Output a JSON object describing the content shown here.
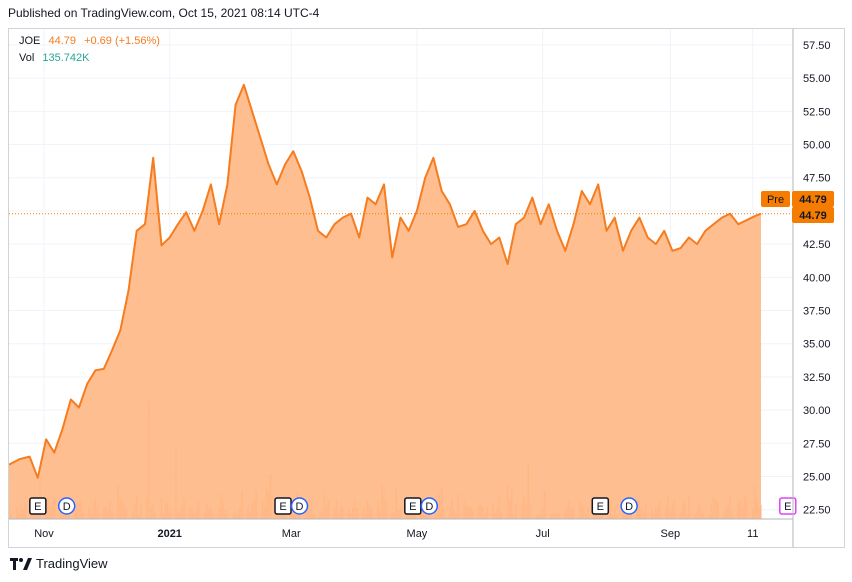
{
  "header": {
    "published": "Published on TradingView.com, Oct 15, 2021 08:14 UTC-4"
  },
  "legend": {
    "symbol": "JOE",
    "price": "44.79",
    "change": "+0.69 (+1.56%)",
    "vol_label": "Vol",
    "vol_value": "135.742K"
  },
  "price_badges": {
    "pre_label": "Pre",
    "pre_value": "44.79",
    "last_value": "44.79"
  },
  "footer": {
    "brand": "TradingView",
    "logo_icon": "tradingview-logo-icon"
  },
  "colors": {
    "line": "#f57c1f",
    "fill": "#ffb37d",
    "volume": "#f5a57a",
    "badge": "#f57c00",
    "event_blue": "#2962ff",
    "event_purple": "#e040fb"
  },
  "events": [
    {
      "type": "E",
      "date": "2020-10-29"
    },
    {
      "type": "D",
      "date": "2020-11-12"
    },
    {
      "type": "E",
      "date": "2021-02-25"
    },
    {
      "type": "D",
      "date": "2021-03-05"
    },
    {
      "type": "E",
      "date": "2021-04-29"
    },
    {
      "type": "D",
      "date": "2021-05-07"
    },
    {
      "type": "E",
      "date": "2021-07-29"
    },
    {
      "type": "D",
      "date": "2021-08-12"
    },
    {
      "type": "E",
      "date": "2021-10-28",
      "upcoming": true
    }
  ],
  "chart_data": {
    "type": "area",
    "symbol": "JOE",
    "x_ticks": [
      "Nov",
      "2021",
      "Mar",
      "May",
      "Jul",
      "Sep",
      "11"
    ],
    "y_ticks": [
      "57.50",
      "55.00",
      "52.50",
      "50.00",
      "47.50",
      "45.00",
      "42.50",
      "40.00",
      "37.50",
      "35.00",
      "32.50",
      "30.00",
      "27.50",
      "25.00",
      "22.50"
    ],
    "ylim": [
      21.8,
      58.7
    ],
    "last_price": 44.79,
    "x": [
      "2020-10-15",
      "2020-10-20",
      "2020-10-25",
      "2020-10-29",
      "2020-11-02",
      "2020-11-06",
      "2020-11-10",
      "2020-11-14",
      "2020-11-18",
      "2020-11-22",
      "2020-11-26",
      "2020-11-30",
      "2020-12-04",
      "2020-12-08",
      "2020-12-12",
      "2020-12-16",
      "2020-12-20",
      "2020-12-24",
      "2020-12-28",
      "2021-01-01",
      "2021-01-05",
      "2021-01-09",
      "2021-01-13",
      "2021-01-17",
      "2021-01-21",
      "2021-01-25",
      "2021-01-29",
      "2021-02-02",
      "2021-02-06",
      "2021-02-10",
      "2021-02-14",
      "2021-02-18",
      "2021-02-22",
      "2021-02-26",
      "2021-03-02",
      "2021-03-06",
      "2021-03-10",
      "2021-03-14",
      "2021-03-18",
      "2021-03-22",
      "2021-03-26",
      "2021-03-30",
      "2021-04-03",
      "2021-04-07",
      "2021-04-11",
      "2021-04-15",
      "2021-04-19",
      "2021-04-23",
      "2021-04-27",
      "2021-05-01",
      "2021-05-05",
      "2021-05-09",
      "2021-05-13",
      "2021-05-17",
      "2021-05-21",
      "2021-05-25",
      "2021-05-29",
      "2021-06-02",
      "2021-06-06",
      "2021-06-10",
      "2021-06-14",
      "2021-06-18",
      "2021-06-22",
      "2021-06-26",
      "2021-06-30",
      "2021-07-04",
      "2021-07-08",
      "2021-07-12",
      "2021-07-16",
      "2021-07-20",
      "2021-07-24",
      "2021-07-28",
      "2021-08-01",
      "2021-08-05",
      "2021-08-09",
      "2021-08-13",
      "2021-08-17",
      "2021-08-21",
      "2021-08-25",
      "2021-08-29",
      "2021-09-02",
      "2021-09-06",
      "2021-09-10",
      "2021-09-14",
      "2021-09-18",
      "2021-09-22",
      "2021-09-26",
      "2021-09-30",
      "2021-10-04",
      "2021-10-08",
      "2021-10-12",
      "2021-10-15"
    ],
    "y": [
      25.9,
      26.3,
      26.5,
      24.9,
      27.8,
      26.8,
      28.6,
      30.8,
      30.2,
      32.0,
      33.0,
      33.1,
      34.5,
      36.0,
      39.0,
      43.5,
      44.0,
      49.0,
      42.4,
      43.0,
      44.0,
      44.9,
      43.5,
      45.0,
      47.0,
      44.0,
      47.0,
      53.0,
      54.5,
      52.5,
      50.5,
      48.5,
      47.0,
      48.5,
      49.5,
      48.0,
      46.0,
      43.5,
      43.0,
      44.0,
      44.5,
      44.8,
      43.0,
      46.0,
      45.5,
      47.0,
      41.5,
      44.5,
      43.5,
      45.0,
      47.5,
      49.0,
      46.5,
      45.5,
      43.8,
      44.0,
      45.0,
      43.5,
      42.5,
      43.0,
      41.0,
      44.0,
      44.5,
      46.0,
      44.0,
      45.5,
      43.5,
      42.0,
      44.0,
      46.5,
      45.5,
      47.0,
      43.5,
      44.5,
      42.0,
      43.5,
      44.5,
      43.0,
      42.5,
      43.5,
      42.0,
      42.2,
      43.0,
      42.5,
      43.5,
      44.0,
      44.5,
      44.79,
      44.0,
      44.3,
      44.6,
      44.79
    ],
    "volume_ylim": [
      0,
      1000
    ]
  }
}
